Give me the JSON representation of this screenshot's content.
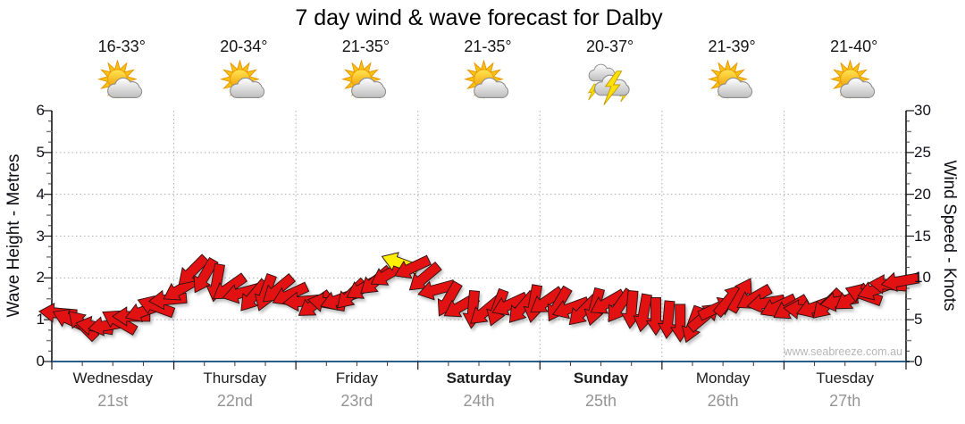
{
  "title": "7 day wind & wave forecast for Dalby",
  "watermark": "www.seabreeze.com.au",
  "axes": {
    "left": {
      "title": "Wave Height - Metres",
      "range": [
        0,
        6
      ],
      "ticks": [
        0,
        1,
        2,
        3,
        4,
        5,
        6
      ]
    },
    "right": {
      "title": "Wind Speed - Knots",
      "range": [
        0,
        30
      ],
      "ticks": [
        0,
        5,
        10,
        15,
        20,
        25,
        30
      ]
    }
  },
  "days": [
    {
      "name": "Wednesday",
      "date": "21st",
      "temp": "16-33°",
      "icon": "partly-cloudy-icon",
      "weekend": false
    },
    {
      "name": "Thursday",
      "date": "22nd",
      "temp": "20-34°",
      "icon": "partly-cloudy-icon",
      "weekend": false
    },
    {
      "name": "Friday",
      "date": "23rd",
      "temp": "21-35°",
      "icon": "partly-cloudy-icon",
      "weekend": false
    },
    {
      "name": "Saturday",
      "date": "24th",
      "temp": "21-35°",
      "icon": "partly-cloudy-icon",
      "weekend": true
    },
    {
      "name": "Sunday",
      "date": "25th",
      "temp": "20-37°",
      "icon": "thunderstorm-icon",
      "weekend": true
    },
    {
      "name": "Monday",
      "date": "26th",
      "temp": "21-39°",
      "icon": "partly-cloudy-icon",
      "weekend": false
    },
    {
      "name": "Tuesday",
      "date": "27th",
      "temp": "21-40°",
      "icon": "partly-cloudy-icon",
      "weekend": false
    }
  ],
  "colors": {
    "arrow": "#e31212",
    "arrow_outline": "#2a1111",
    "arrow_highlight": "#ffee00",
    "baseline_blue": "#2a5f8c",
    "grid": "#aeaeae",
    "date_text": "#949494",
    "watermark_text": "#b6b6b6"
  },
  "chart_data": {
    "type": "scatter",
    "title": "7 day wind & wave forecast for Dalby",
    "x_categories": [
      "Wednesday 21st",
      "Thursday 22nd",
      "Friday 23rd",
      "Saturday 24th",
      "Sunday 25th",
      "Monday 26th",
      "Tuesday 27th"
    ],
    "ylabel_left": "Wave Height - Metres",
    "ylim_left": [
      0,
      6
    ],
    "ylabel_right": "Wind Speed - Knots",
    "ylim_right": [
      0,
      30
    ],
    "grid": "dotted, horizontal every 1 m (5 kn), vertical at day boundaries",
    "legend": "none",
    "series": [
      {
        "name": "Wind speed & direction arrows",
        "units": "knots",
        "points_per_day": 10,
        "x_spacing": "70 evenly spaced points across the 7 days",
        "note": "each point = [wind speed in knots, arrow rotation deg clockwise from pointing-right]",
        "points": [
          [
            5.8,
            185
          ],
          [
            5.0,
            205
          ],
          [
            4.4,
            225
          ],
          [
            4.2,
            190
          ],
          [
            4.3,
            170
          ],
          [
            4.8,
            210
          ],
          [
            5.4,
            180
          ],
          [
            6.0,
            160
          ],
          [
            6.6,
            200
          ],
          [
            7.4,
            175
          ],
          [
            8.6,
            150
          ],
          [
            10.8,
            135
          ],
          [
            10.2,
            120
          ],
          [
            9.4,
            100
          ],
          [
            8.8,
            145
          ],
          [
            8.2,
            165
          ],
          [
            7.8,
            130
          ],
          [
            8.2,
            110
          ],
          [
            8.6,
            140
          ],
          [
            8.0,
            155
          ],
          [
            7.2,
            175
          ],
          [
            6.8,
            145
          ],
          [
            7.0,
            190
          ],
          [
            7.4,
            160
          ],
          [
            8.0,
            135
          ],
          [
            8.8,
            150
          ],
          [
            9.6,
            140
          ],
          [
            10.4,
            150
          ],
          [
            11.8,
            200
          ],
          [
            11.2,
            155
          ],
          [
            10.0,
            140
          ],
          [
            8.6,
            165
          ],
          [
            7.4,
            120
          ],
          [
            6.6,
            150
          ],
          [
            6.2,
            95
          ],
          [
            6.0,
            140
          ],
          [
            6.4,
            110
          ],
          [
            6.8,
            155
          ],
          [
            6.4,
            130
          ],
          [
            6.9,
            100
          ],
          [
            7.2,
            145
          ],
          [
            6.8,
            120
          ],
          [
            6.4,
            160
          ],
          [
            6.0,
            135
          ],
          [
            6.5,
            105
          ],
          [
            7.0,
            150
          ],
          [
            6.6,
            125
          ],
          [
            6.2,
            95
          ],
          [
            5.8,
            100
          ],
          [
            5.4,
            90
          ],
          [
            5.0,
            95
          ],
          [
            4.6,
            90
          ],
          [
            4.4,
            110
          ],
          [
            5.4,
            320
          ],
          [
            6.4,
            335
          ],
          [
            7.4,
            310
          ],
          [
            8.0,
            300
          ],
          [
            7.6,
            150
          ],
          [
            7.0,
            170
          ],
          [
            6.6,
            155
          ],
          [
            6.4,
            150
          ],
          [
            6.2,
            185
          ],
          [
            6.5,
            160
          ],
          [
            6.8,
            135
          ],
          [
            7.2,
            170
          ],
          [
            7.6,
            145
          ],
          [
            8.0,
            200
          ],
          [
            8.6,
            160
          ],
          [
            9.2,
            185
          ],
          [
            9.6,
            170
          ]
        ],
        "highlight_index": 28
      }
    ]
  }
}
